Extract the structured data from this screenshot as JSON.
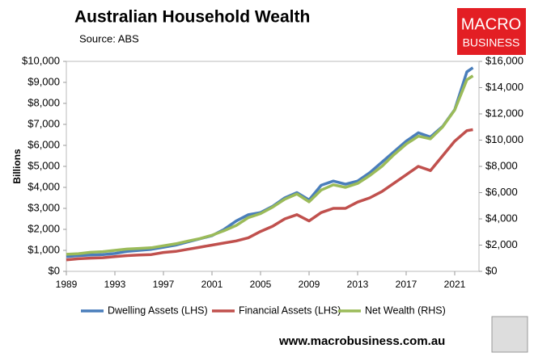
{
  "chart_data": {
    "type": "line",
    "title": "Australian Household Wealth",
    "subtitle": "Source: ABS",
    "ylabel": "Billions",
    "x": [
      1989,
      1990,
      1991,
      1992,
      1993,
      1994,
      1995,
      1996,
      1997,
      1998,
      1999,
      2000,
      2001,
      2002,
      2003,
      2004,
      2005,
      2006,
      2007,
      2008,
      2009,
      2010,
      2011,
      2012,
      2013,
      2014,
      2015,
      2016,
      2017,
      2018,
      2019,
      2020,
      2021,
      2022,
      2022.5
    ],
    "series": [
      {
        "name": "Dwelling Assets (LHS)",
        "color": "#4a7ebb",
        "values": [
          700,
          750,
          780,
          800,
          850,
          950,
          1000,
          1050,
          1150,
          1250,
          1400,
          1550,
          1700,
          2000,
          2400,
          2700,
          2800,
          3100,
          3500,
          3750,
          3400,
          4100,
          4300,
          4150,
          4300,
          4700,
          5200,
          5700,
          6200,
          6600,
          6400,
          6900,
          7700,
          9500,
          9700
        ]
      },
      {
        "name": "Financial Assets (LHS)",
        "color": "#c0504d",
        "values": [
          550,
          600,
          630,
          650,
          700,
          750,
          780,
          800,
          900,
          950,
          1050,
          1150,
          1250,
          1350,
          1450,
          1600,
          1900,
          2150,
          2500,
          2700,
          2400,
          2800,
          3000,
          3000,
          3300,
          3500,
          3800,
          4200,
          4600,
          5000,
          4800,
          5500,
          6200,
          6700,
          6750
        ]
      },
      {
        "name": "Net Wealth (RHS)",
        "color": "#9bbb59",
        "axis": "y2",
        "values": [
          1300,
          1350,
          1450,
          1500,
          1600,
          1700,
          1750,
          1800,
          1950,
          2100,
          2300,
          2500,
          2750,
          3100,
          3500,
          4100,
          4400,
          4900,
          5500,
          5900,
          5300,
          6200,
          6600,
          6400,
          6700,
          7300,
          8000,
          8900,
          9700,
          10300,
          10100,
          11000,
          12300,
          14600,
          14900
        ]
      }
    ],
    "xlim": [
      1989,
      2023
    ],
    "xticks": [
      1989,
      1993,
      1997,
      2001,
      2005,
      2009,
      2013,
      2017,
      2021
    ],
    "ylim": [
      0,
      10000
    ],
    "yticks": [
      {
        "value": 0,
        "label": "$0"
      },
      {
        "value": 1000,
        "label": "$1,000"
      },
      {
        "value": 2000,
        "label": "$2,000"
      },
      {
        "value": 3000,
        "label": "$3,000"
      },
      {
        "value": 4000,
        "label": "$4,000"
      },
      {
        "value": 5000,
        "label": "$5,000"
      },
      {
        "value": 6000,
        "label": "$6,000"
      },
      {
        "value": 7000,
        "label": "$7,000"
      },
      {
        "value": 8000,
        "label": "$8,000"
      },
      {
        "value": 9000,
        "label": "$9,000"
      },
      {
        "value": 10000,
        "label": "$10,000"
      }
    ],
    "y2lim": [
      0,
      16000
    ],
    "y2ticks": [
      {
        "value": 0,
        "label": "$0"
      },
      {
        "value": 2000,
        "label": "$2,000"
      },
      {
        "value": 4000,
        "label": "$4,000"
      },
      {
        "value": 6000,
        "label": "$6,000"
      },
      {
        "value": 8000,
        "label": "$8,000"
      },
      {
        "value": 10000,
        "label": "$10,000"
      },
      {
        "value": 12000,
        "label": "$12,000"
      },
      {
        "value": 14000,
        "label": "$14,000"
      },
      {
        "value": 16000,
        "label": "$16,000"
      }
    ],
    "legend": "bottom",
    "grid": false
  },
  "branding": {
    "logo_top": "MACRO",
    "logo_bottom": "BUSINESS",
    "url": "www.macrobusiness.com.au"
  }
}
